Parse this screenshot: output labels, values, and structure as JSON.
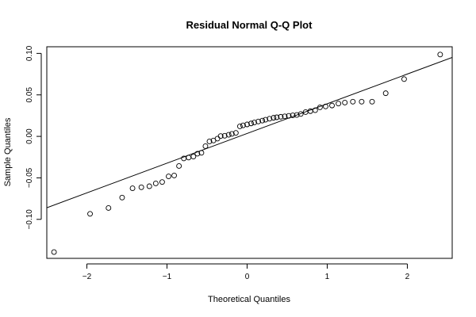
{
  "chart_data": {
    "type": "scatter",
    "title": "Residual Normal Q-Q Plot",
    "xlabel": "Theoretical Quantiles",
    "ylabel": "Sample Quantiles",
    "xlim": [
      -2.5,
      2.56
    ],
    "ylim": [
      -0.147,
      0.108
    ],
    "xticks": [
      -2,
      -1,
      0,
      1,
      2
    ],
    "xtick_labels": [
      "−2",
      "−1",
      "0",
      "1",
      "2"
    ],
    "yticks": [
      -0.1,
      -0.05,
      0.0,
      0.05,
      0.1
    ],
    "ytick_labels": [
      "−0.10",
      "−0.05",
      "0.00",
      "0.05",
      "0.10"
    ],
    "grid": false,
    "legend": "none",
    "marker": "open-circle",
    "reference_line": {
      "intercept": 0.0035,
      "slope": 0.0358
    },
    "points": [
      [
        -2.41,
        -0.1394
      ],
      [
        -1.96,
        -0.0933
      ],
      [
        -1.73,
        -0.0863
      ],
      [
        -1.56,
        -0.0738
      ],
      [
        -1.43,
        -0.0625
      ],
      [
        -1.32,
        -0.0613
      ],
      [
        -1.22,
        -0.0601
      ],
      [
        -1.14,
        -0.0567
      ],
      [
        -1.06,
        -0.055
      ],
      [
        -0.98,
        -0.0482
      ],
      [
        -0.91,
        -0.0471
      ],
      [
        -0.85,
        -0.0357
      ],
      [
        -0.79,
        -0.0266
      ],
      [
        -0.73,
        -0.0255
      ],
      [
        -0.67,
        -0.0243
      ],
      [
        -0.62,
        -0.0209
      ],
      [
        -0.57,
        -0.0198
      ],
      [
        -0.52,
        -0.0118
      ],
      [
        -0.47,
        -0.0061
      ],
      [
        -0.42,
        -0.005
      ],
      [
        -0.37,
        -0.0027
      ],
      [
        -0.33,
        0.0004
      ],
      [
        -0.28,
        0.0007
      ],
      [
        -0.23,
        0.0019
      ],
      [
        -0.19,
        0.003
      ],
      [
        -0.14,
        0.0042
      ],
      [
        -0.09,
        0.0121
      ],
      [
        -0.05,
        0.0133
      ],
      [
        0.0,
        0.0144
      ],
      [
        0.05,
        0.0156
      ],
      [
        0.09,
        0.0167
      ],
      [
        0.14,
        0.0179
      ],
      [
        0.19,
        0.019
      ],
      [
        0.23,
        0.0201
      ],
      [
        0.28,
        0.0213
      ],
      [
        0.33,
        0.0224
      ],
      [
        0.37,
        0.023
      ],
      [
        0.42,
        0.0236
      ],
      [
        0.47,
        0.0241
      ],
      [
        0.52,
        0.0247
      ],
      [
        0.57,
        0.0253
      ],
      [
        0.62,
        0.0258
      ],
      [
        0.67,
        0.027
      ],
      [
        0.73,
        0.0293
      ],
      [
        0.79,
        0.0304
      ],
      [
        0.85,
        0.0315
      ],
      [
        0.91,
        0.035
      ],
      [
        0.98,
        0.0361
      ],
      [
        1.06,
        0.0372
      ],
      [
        1.14,
        0.0395
      ],
      [
        1.22,
        0.0407
      ],
      [
        1.32,
        0.0418
      ],
      [
        1.43,
        0.0418
      ],
      [
        1.56,
        0.0418
      ],
      [
        1.73,
        0.052
      ],
      [
        1.96,
        0.069
      ],
      [
        2.41,
        0.0986
      ]
    ]
  }
}
